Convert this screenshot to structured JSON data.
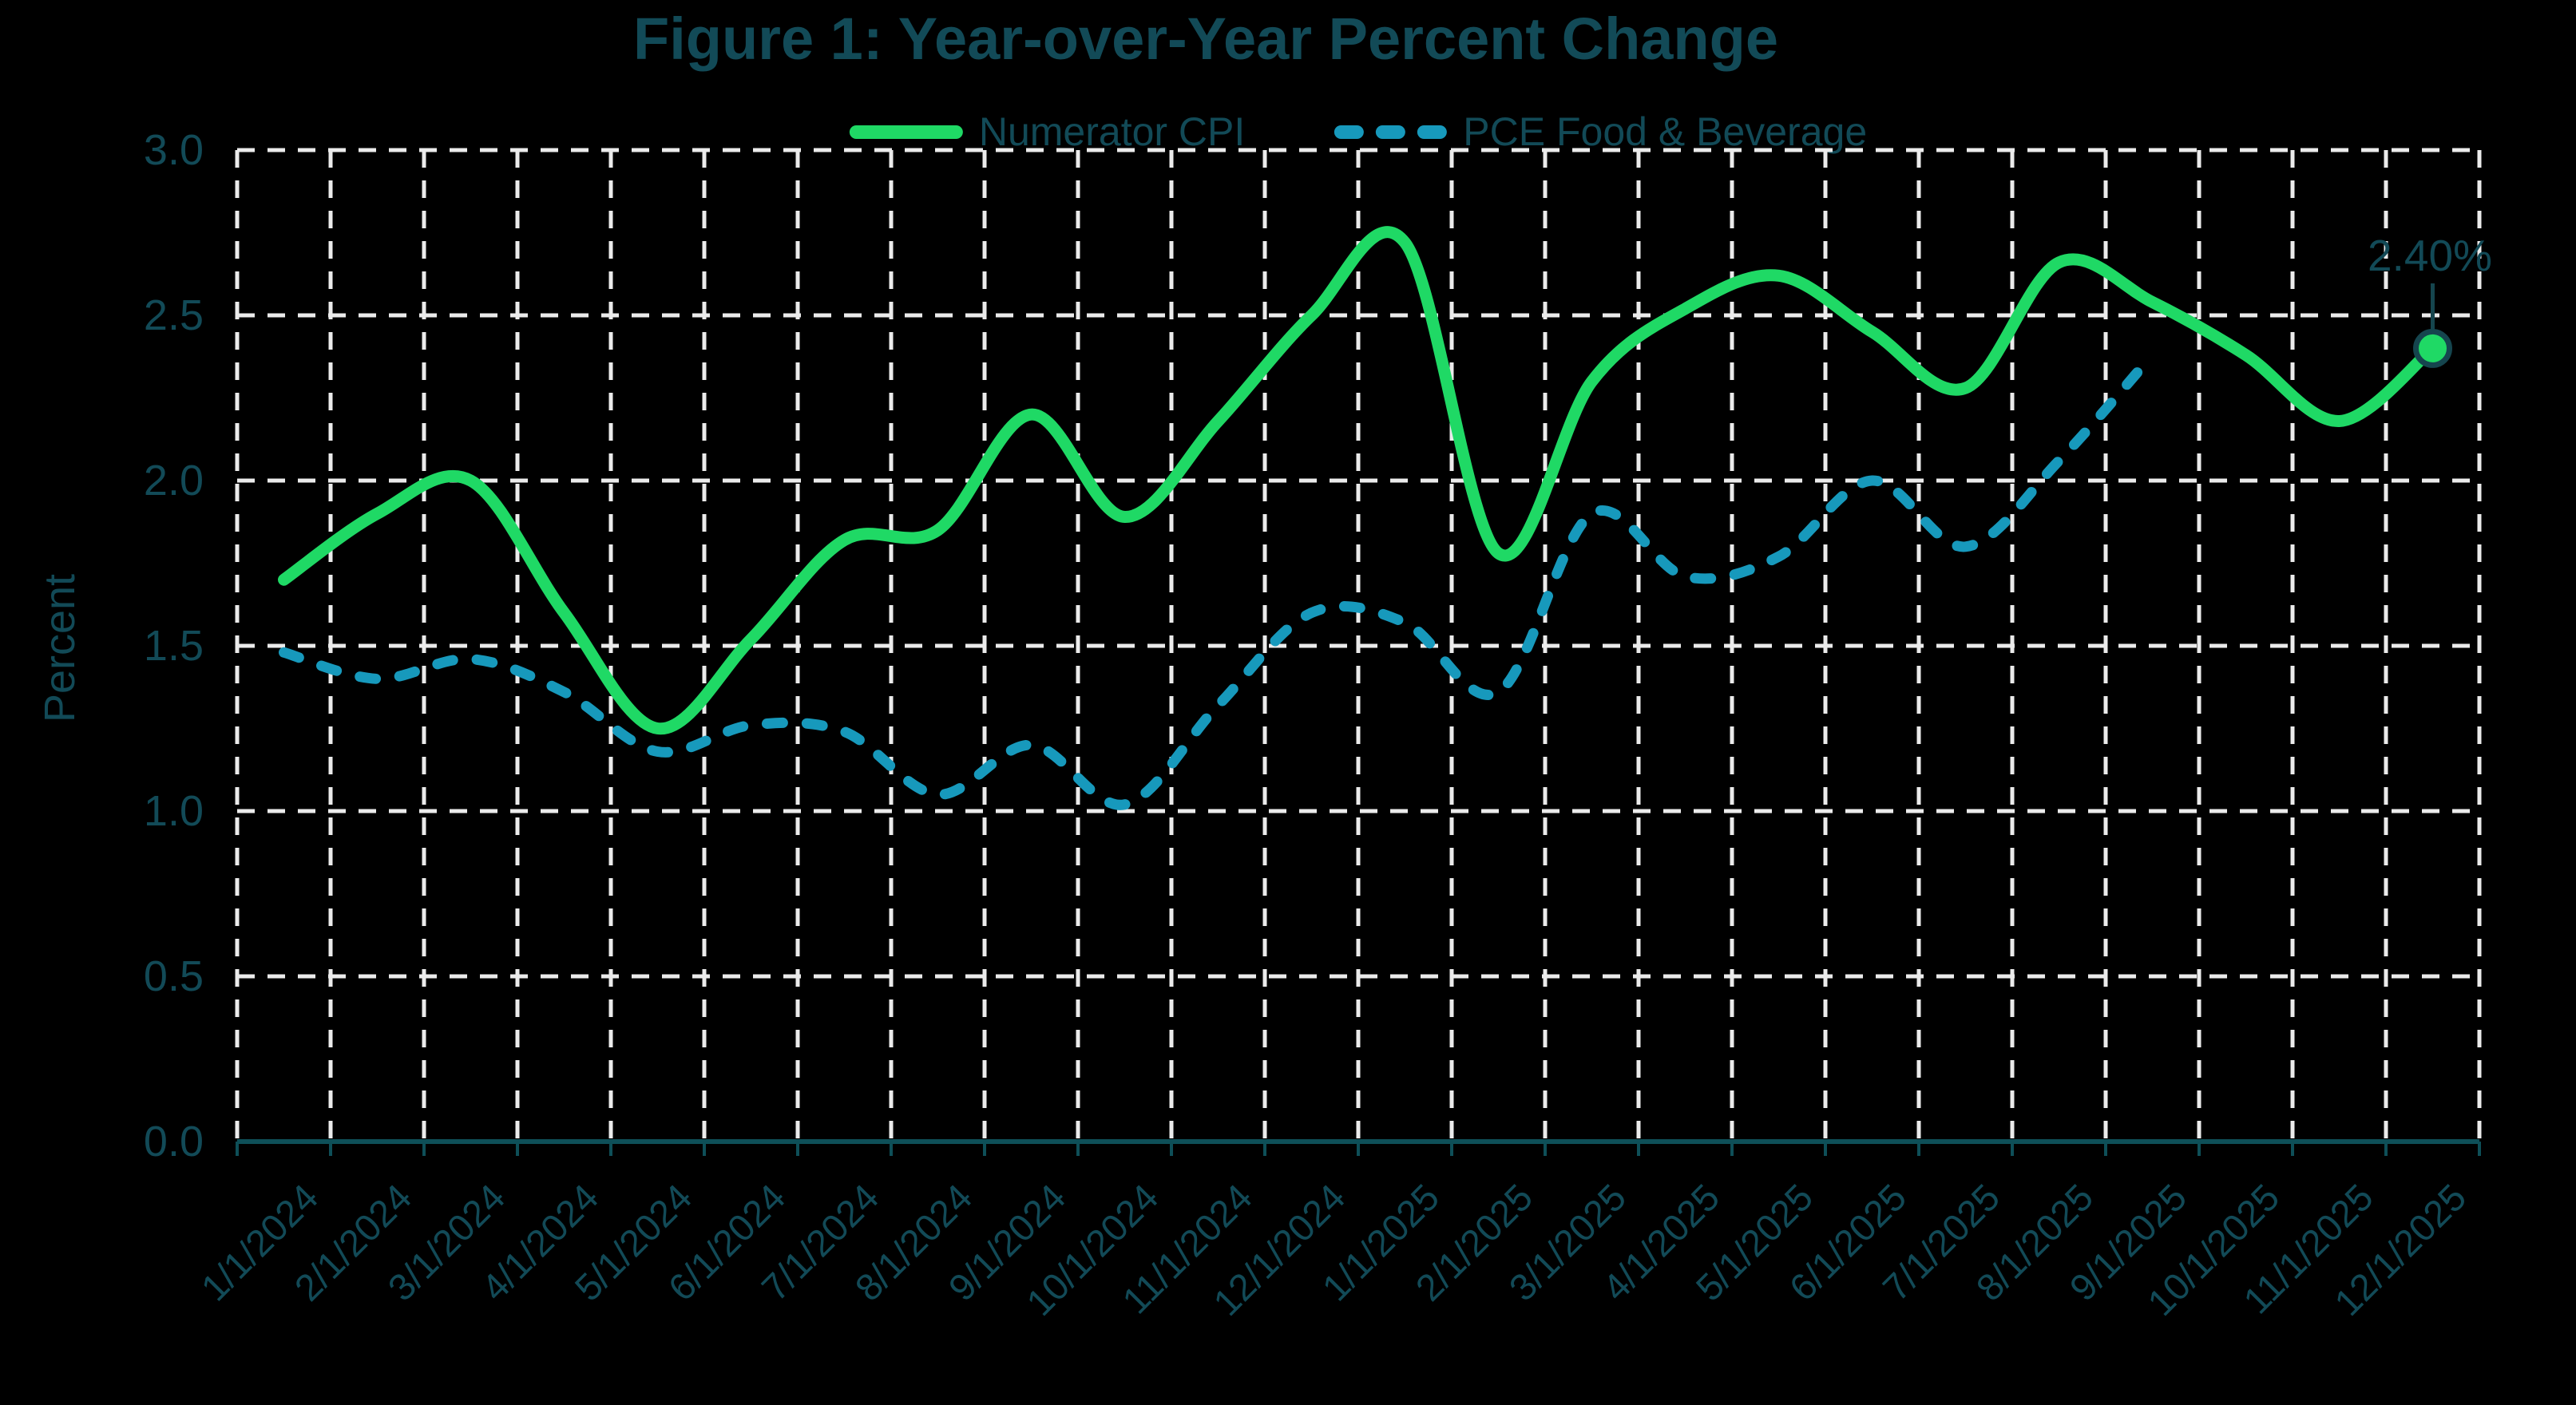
{
  "chart_data": {
    "type": "line",
    "title": "Figure 1: Year-over-Year Percent Change",
    "xlabel": "",
    "ylabel": "Percent",
    "ylim": [
      0.0,
      3.0
    ],
    "ytick_labels": [
      "0.0",
      "0.5",
      "1.0",
      "1.5",
      "2.0",
      "2.5",
      "3.0"
    ],
    "ytick_values": [
      0.0,
      0.5,
      1.0,
      1.5,
      2.0,
      2.5,
      3.0
    ],
    "grid": "dashed gridlines both directions on black background",
    "legend_position": "top-center",
    "categories": [
      "1/1/2024",
      "2/1/2024",
      "3/1/2024",
      "4/1/2024",
      "5/1/2024",
      "6/1/2024",
      "7/1/2024",
      "8/1/2024",
      "9/1/2024",
      "10/1/2024",
      "11/1/2024",
      "12/1/2024",
      "1/1/2025",
      "2/1/2025",
      "3/1/2025",
      "4/1/2025",
      "5/1/2025",
      "6/1/2025",
      "7/1/2025",
      "8/1/2025",
      "9/1/2025",
      "10/1/2025",
      "11/1/2025",
      "12/1/2025"
    ],
    "series": [
      {
        "name": "Numerator CPI",
        "line_style": "solid",
        "color": "#1FD965",
        "values": [
          1.7,
          1.9,
          2.0,
          1.6,
          1.25,
          1.52,
          1.82,
          1.85,
          2.2,
          1.89,
          2.18,
          2.5,
          2.72,
          1.78,
          2.3,
          2.52,
          2.62,
          2.45,
          2.28,
          2.66,
          2.54,
          2.38,
          2.18,
          2.4
        ]
      },
      {
        "name": "PCE Food & Beverage",
        "line_style": "dashed",
        "color": "#1799BC",
        "values": [
          1.48,
          1.4,
          1.46,
          1.36,
          1.18,
          1.26,
          1.24,
          1.05,
          1.2,
          1.02,
          1.32,
          1.6,
          1.57,
          1.36,
          1.9,
          1.71,
          1.77,
          2.0,
          1.8,
          2.06,
          2.38
        ]
      }
    ],
    "annotation": {
      "label": "2.40%",
      "series": "Numerator CPI",
      "category": "12/1/2025",
      "value": 2.4,
      "marker": "circle, green fill, dark-teal outline, leader line down from label"
    }
  },
  "colors": {
    "background": "#000000",
    "title_text": "#124A57",
    "axis_text": "#124A57",
    "gridline": "#EBEBEB",
    "axis_line": "#0E4F58",
    "series_green": "#1FD965",
    "series_teal": "#1799BC",
    "marker_outline": "#15454E"
  }
}
